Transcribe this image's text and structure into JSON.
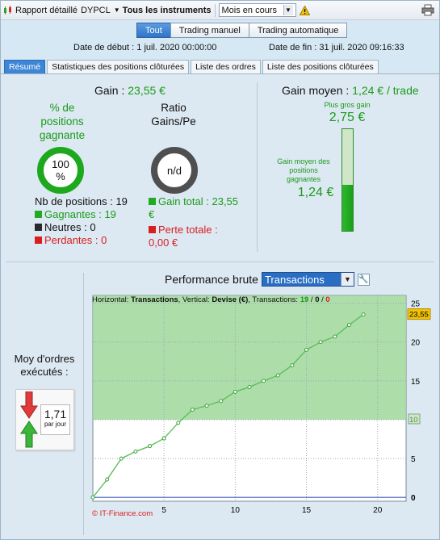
{
  "toolbar": {
    "report_label": "Rapport détaillé",
    "symbol_label": "DYPCL",
    "instruments_label": "Tous les instruments",
    "period_value": "Mois en cours"
  },
  "modes": [
    "Tout",
    "Trading manuel",
    "Trading automatique"
  ],
  "dates": {
    "start": "Date de début : 1 juil. 2020 00:00:00",
    "end": "Date de fin : 31 juil. 2020 09:16:33"
  },
  "tabs": [
    "Résumé",
    "Statistiques des positions clôturées",
    "Liste des ordres",
    "Liste des positions clôturées"
  ],
  "summary": {
    "gain_label": "Gain :",
    "gain_value": "23,55 €",
    "pct_title": "% de positions gagnante",
    "pct_value": "100 %",
    "pct_fraction": 1.0,
    "ratio_title": "Ratio Gains/Pe",
    "ratio_value": "n/d",
    "nb_positions": "Nb de positions : 19",
    "gagnantes": "Gagnantes : 19",
    "neutres": "Neutres : 0",
    "perdantes": "Perdantes : 0",
    "gain_total": "Gain total : 23,55 €",
    "perte_totale": "Perte totale : 0,00 €"
  },
  "average": {
    "title": "Gain moyen :",
    "value": "1,24 € / trade",
    "best_label": "Plus gros gain",
    "best_value": "2,75 €",
    "avg_label": "Gain moyen des positions gagnantes",
    "avg_value": "1,24 €",
    "bar_fraction": 0.45
  },
  "orders": {
    "label": "Moy d'ordres exécutés :",
    "value": "1,71",
    "unit": "par jour"
  },
  "chart_header": {
    "title": "Performance brute",
    "select_value": "Transactions"
  },
  "chart_info": {
    "prefix": "Horizontal:",
    "h_value": "Transactions",
    "v_prefix": ", Vertical:",
    "v_value": "Devise (€)",
    "t_prefix": ", Transactions:",
    "t_green": "19",
    "t_sep1": " / ",
    "t_black": "0",
    "t_sep2": " / ",
    "t_red": "0"
  },
  "copyright": "© IT-Finance.com",
  "colors": {
    "gain_green": "#1a9a1a",
    "loss_red": "#d81e1e",
    "accent_blue": "#2f74c8",
    "area_fill": "#9fd79a"
  },
  "chart_data": {
    "type": "line",
    "x": [
      0,
      1,
      2,
      3,
      4,
      5,
      6,
      7,
      8,
      9,
      10,
      11,
      12,
      13,
      14,
      15,
      16,
      17,
      18,
      19
    ],
    "values": [
      0,
      2.3,
      5.0,
      5.9,
      6.6,
      7.6,
      9.6,
      11.3,
      11.8,
      12.4,
      13.6,
      14.2,
      15.0,
      15.7,
      17.0,
      19.0,
      20.0,
      20.7,
      22.2,
      23.55
    ],
    "xticks": [
      5,
      10,
      15,
      20
    ],
    "yticks": [
      0,
      5,
      10,
      15,
      20,
      25
    ],
    "xlim": [
      0,
      22
    ],
    "ylim": [
      -0.5,
      26
    ],
    "last_label": "23,55",
    "ref_label": "10"
  }
}
